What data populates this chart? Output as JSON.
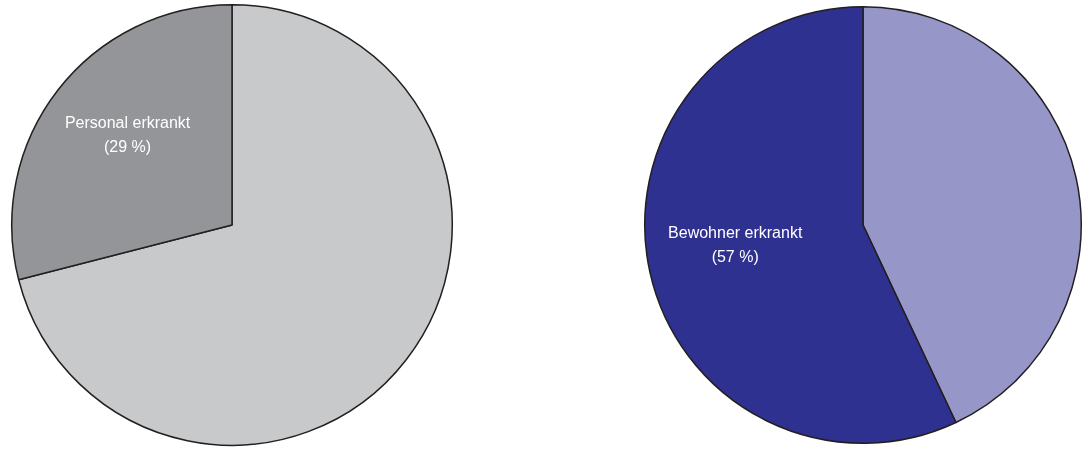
{
  "chart_data": [
    {
      "type": "pie",
      "categories": [
        null,
        "Personal erkrankt"
      ],
      "values": [
        71,
        29
      ],
      "colors": [
        "#c8c9cb",
        "#939598"
      ],
      "value_labels": [
        null,
        "(29 %)"
      ],
      "legend": false
    },
    {
      "type": "pie",
      "categories": [
        null,
        "Bewohner erkrankt"
      ],
      "values": [
        43,
        57
      ],
      "colors": [
        "#9696c8",
        "#2e3190"
      ],
      "value_labels": [
        null,
        "(57 %)"
      ],
      "legend": false
    }
  ]
}
